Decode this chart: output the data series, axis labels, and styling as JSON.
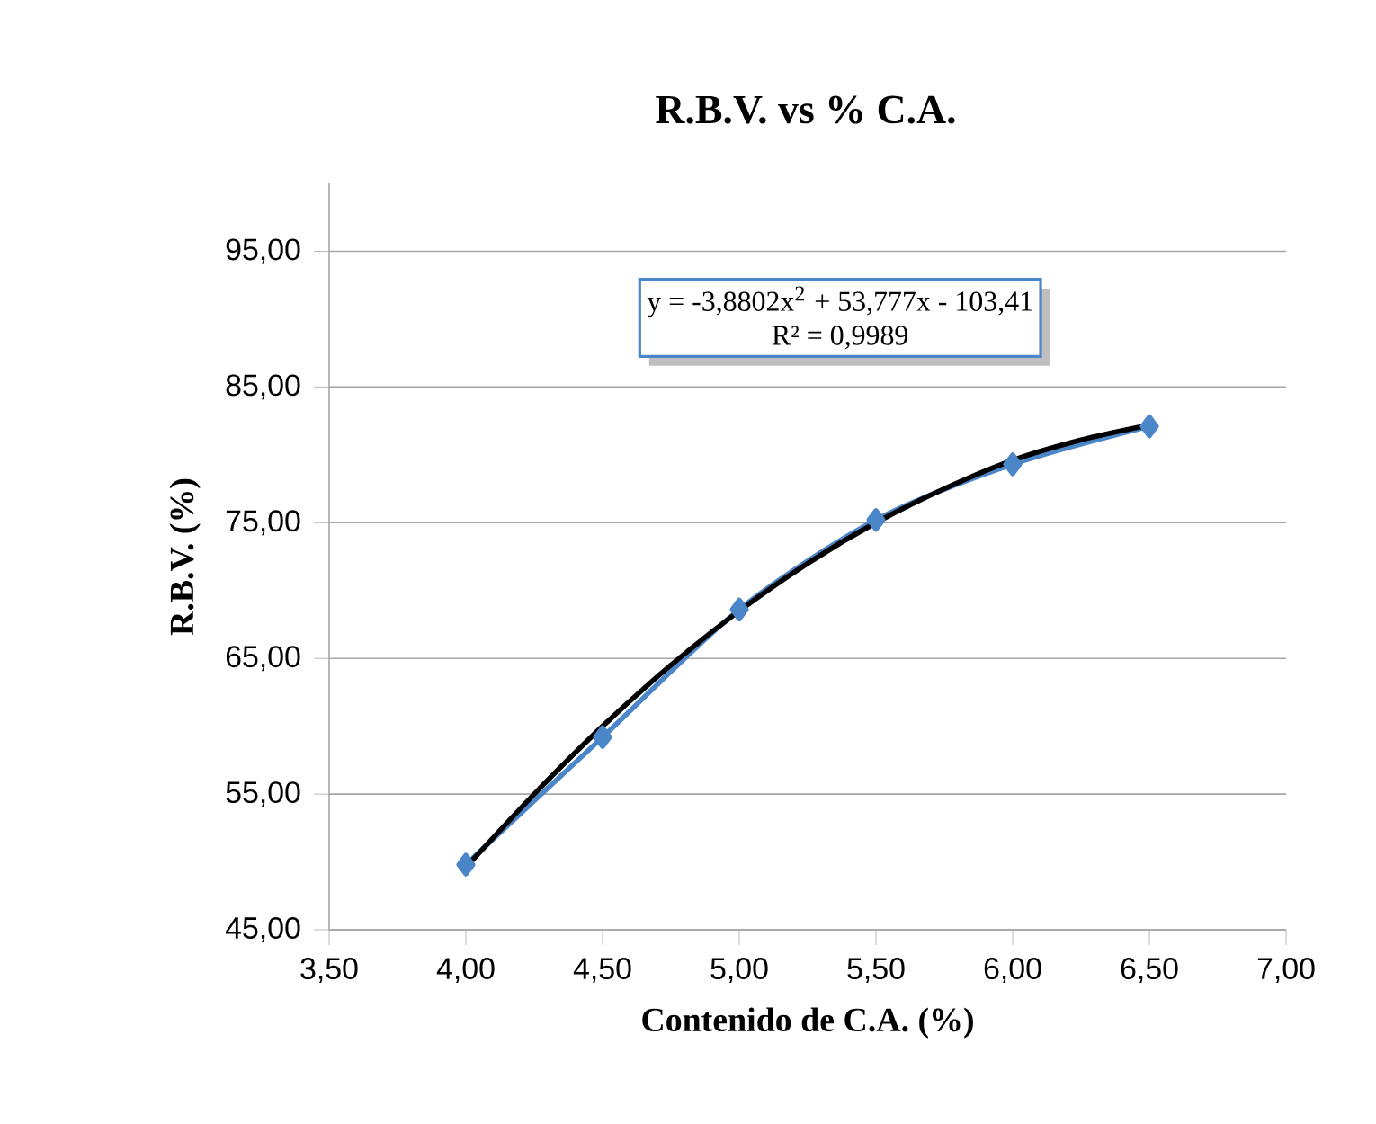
{
  "chart_data": {
    "type": "line",
    "title": "R.B.V. vs % C.A.",
    "xlabel": "Contenido de C.A. (%)",
    "ylabel": "R.B.V. (%)",
    "xlim": [
      3.5,
      7.0
    ],
    "xticks": [
      {
        "value": 3.5,
        "label": "3,50"
      },
      {
        "value": 4.0,
        "label": "4,00"
      },
      {
        "value": 4.5,
        "label": "4,50"
      },
      {
        "value": 5.0,
        "label": "5,00"
      },
      {
        "value": 5.5,
        "label": "5,50"
      },
      {
        "value": 6.0,
        "label": "6,00"
      },
      {
        "value": 6.5,
        "label": "6,50"
      },
      {
        "value": 7.0,
        "label": "7,00"
      }
    ],
    "ylim": [
      45,
      100
    ],
    "yticks": [
      {
        "value": 45,
        "label": "45,00"
      },
      {
        "value": 55,
        "label": "55,00"
      },
      {
        "value": 65,
        "label": "65,00"
      },
      {
        "value": 75,
        "label": "75,00"
      },
      {
        "value": 85,
        "label": "85,00"
      },
      {
        "value": 95,
        "label": "95,00"
      }
    ],
    "grid": "y",
    "marker": "diamond",
    "line_style": "solid",
    "series": [
      {
        "color": "#4a86c8",
        "x": [
          4.0,
          4.5,
          5.0,
          5.5,
          6.0,
          6.5
        ],
        "values": [
          49.8,
          59.2,
          68.6,
          75.2,
          79.3,
          82.1
        ]
      },
      {
        "color": "#000000",
        "marker": "none",
        "x": [
          4.0,
          4.25,
          4.5,
          4.75,
          5.0,
          5.25,
          5.5,
          5.75,
          6.0,
          6.25,
          6.5
        ],
        "values": [
          49.6,
          55.0,
          60.0,
          64.5,
          68.5,
          72.0,
          75.0,
          77.5,
          79.6,
          81.1,
          82.2
        ]
      }
    ],
    "annotations": [
      "y = -3,8802x$^{2}$ + 53,777x - 103,41",
      "R² = 0,9989"
    ]
  }
}
